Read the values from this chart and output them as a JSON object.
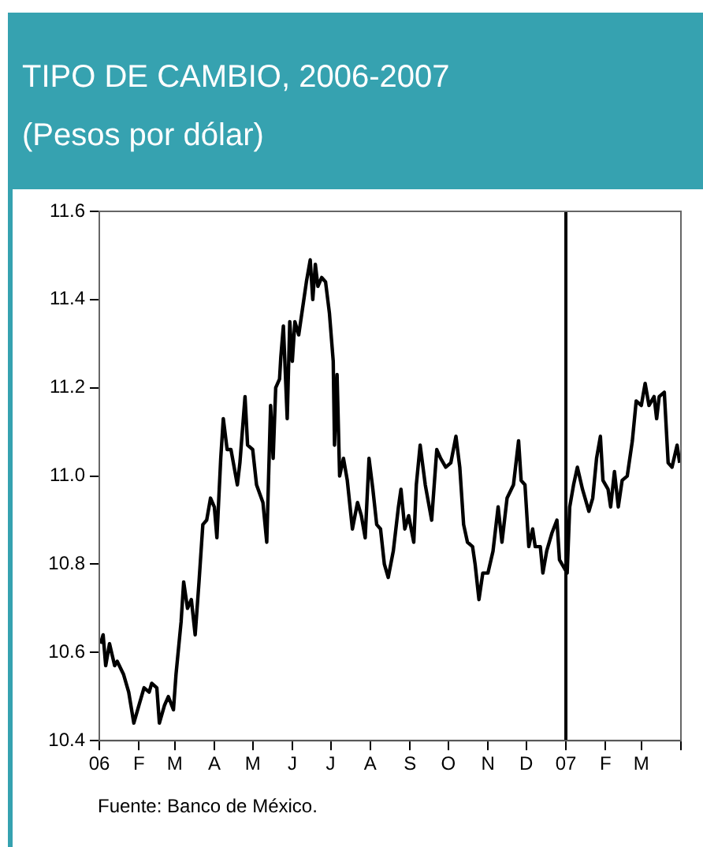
{
  "chart_data": {
    "type": "line",
    "title": "TIPO DE CAMBIO, 2006-2007",
    "subtitle": "(Pesos por dólar)",
    "annotations": [
      "Fuente: Banco de México."
    ],
    "x": [
      "2006-01-02",
      "2006-01-04",
      "2006-01-06",
      "2006-01-09",
      "2006-01-13",
      "2006-01-15",
      "2006-01-20",
      "2006-01-24",
      "2006-01-28",
      "2006-02-01",
      "2006-02-05",
      "2006-02-09",
      "2006-02-11",
      "2006-02-15",
      "2006-02-17",
      "2006-02-21",
      "2006-02-24",
      "2006-02-28",
      "2006-03-02",
      "2006-03-06",
      "2006-03-08",
      "2006-03-11",
      "2006-03-14",
      "2006-03-17",
      "2006-03-20",
      "2006-03-23",
      "2006-03-26",
      "2006-03-29",
      "2006-04-01",
      "2006-04-03",
      "2006-04-06",
      "2006-04-08",
      "2006-04-11",
      "2006-04-14",
      "2006-04-19",
      "2006-04-21",
      "2006-04-25",
      "2006-04-27",
      "2006-05-01",
      "2006-05-04",
      "2006-05-09",
      "2006-05-12",
      "2006-05-15",
      "2006-05-17",
      "2006-05-19",
      "2006-05-22",
      "2006-05-23",
      "2006-05-25",
      "2006-05-28",
      "2006-05-30",
      "2006-06-01",
      "2006-06-03",
      "2006-06-06",
      "2006-06-10",
      "2006-06-12",
      "2006-06-15",
      "2006-06-17",
      "2006-06-19",
      "2006-06-21",
      "2006-06-24",
      "2006-06-27",
      "2006-06-30",
      "2006-07-03",
      "2006-07-04",
      "2006-07-06",
      "2006-07-08",
      "2006-07-11",
      "2006-07-14",
      "2006-07-18",
      "2006-07-22",
      "2006-07-25",
      "2006-07-28",
      "2006-07-31",
      "2006-08-03",
      "2006-08-06",
      "2006-08-09",
      "2006-08-12",
      "2006-08-15",
      "2006-08-19",
      "2006-08-23",
      "2006-08-25",
      "2006-08-28",
      "2006-08-31",
      "2006-09-04",
      "2006-09-06",
      "2006-09-09",
      "2006-09-13",
      "2006-09-18",
      "2006-09-22",
      "2006-09-25",
      "2006-09-29",
      "2006-10-03",
      "2006-10-07",
      "2006-10-10",
      "2006-10-13",
      "2006-10-16",
      "2006-10-20",
      "2006-10-22",
      "2006-10-25",
      "2006-10-28",
      "2006-11-01",
      "2006-11-05",
      "2006-11-09",
      "2006-11-12",
      "2006-11-16",
      "2006-11-21",
      "2006-11-25",
      "2006-11-27",
      "2006-11-30",
      "2006-12-03",
      "2006-12-06",
      "2006-12-08",
      "2006-12-12",
      "2006-12-14",
      "2006-12-17",
      "2006-12-21",
      "2006-12-25",
      "2006-12-27",
      "2007-01-02",
      "2007-01-04",
      "2007-01-07",
      "2007-01-10",
      "2007-01-14",
      "2007-01-19",
      "2007-01-22",
      "2007-01-25",
      "2007-01-28",
      "2007-01-30",
      "2007-02-03",
      "2007-02-05",
      "2007-02-08",
      "2007-02-11",
      "2007-02-14",
      "2007-02-18",
      "2007-02-22",
      "2007-02-25",
      "2007-03-01",
      "2007-03-04",
      "2007-03-07",
      "2007-03-11",
      "2007-03-13",
      "2007-03-15",
      "2007-03-19",
      "2007-03-22",
      "2007-03-25",
      "2007-03-29",
      "2007-03-31"
    ],
    "series": [
      {
        "color": "#000000",
        "values": [
          10.62,
          10.64,
          10.57,
          10.62,
          10.57,
          10.58,
          10.55,
          10.51,
          10.44,
          10.48,
          10.52,
          10.51,
          10.53,
          10.52,
          10.44,
          10.48,
          10.5,
          10.47,
          10.55,
          10.67,
          10.76,
          10.7,
          10.72,
          10.64,
          10.76,
          10.89,
          10.9,
          10.95,
          10.93,
          10.86,
          11.04,
          11.13,
          11.06,
          11.06,
          10.98,
          11.03,
          11.18,
          11.07,
          11.06,
          10.98,
          10.94,
          10.85,
          11.16,
          11.04,
          11.2,
          11.22,
          11.27,
          11.34,
          11.13,
          11.35,
          11.26,
          11.35,
          11.32,
          11.4,
          11.44,
          11.49,
          11.4,
          11.48,
          11.43,
          11.45,
          11.44,
          11.37,
          11.26,
          11.07,
          11.23,
          11.0,
          11.04,
          10.99,
          10.88,
          10.94,
          10.91,
          10.86,
          11.04,
          10.97,
          10.89,
          10.88,
          10.8,
          10.77,
          10.83,
          10.93,
          10.97,
          10.88,
          10.91,
          10.85,
          10.98,
          11.07,
          10.98,
          10.9,
          11.06,
          11.04,
          11.02,
          11.03,
          11.09,
          11.02,
          10.89,
          10.85,
          10.84,
          10.8,
          10.72,
          10.78,
          10.78,
          10.83,
          10.93,
          10.85,
          10.95,
          10.98,
          11.08,
          10.99,
          10.98,
          10.84,
          10.88,
          10.84,
          10.84,
          10.78,
          10.83,
          10.87,
          10.9,
          10.81,
          10.78,
          10.93,
          10.98,
          11.02,
          10.97,
          10.92,
          10.95,
          11.04,
          11.09,
          10.99,
          10.97,
          10.93,
          11.01,
          10.93,
          10.99,
          11.0,
          11.08,
          11.17,
          11.16,
          11.21,
          11.16,
          11.18,
          11.13,
          11.18,
          11.19,
          11.03,
          11.02,
          11.07,
          11.03
        ]
      }
    ],
    "xlim": [
      "2006-01-01",
      "2007-04-01"
    ],
    "xticks": [
      {
        "value": "2006-01-01",
        "label": "06"
      },
      {
        "value": "2006-02-01",
        "label": "F"
      },
      {
        "value": "2006-03-01",
        "label": "M"
      },
      {
        "value": "2006-04-01",
        "label": "A"
      },
      {
        "value": "2006-05-01",
        "label": "M"
      },
      {
        "value": "2006-06-01",
        "label": "J"
      },
      {
        "value": "2006-07-01",
        "label": "J"
      },
      {
        "value": "2006-08-01",
        "label": "A"
      },
      {
        "value": "2006-09-01",
        "label": "S"
      },
      {
        "value": "2006-10-01",
        "label": "O"
      },
      {
        "value": "2006-11-01",
        "label": "N"
      },
      {
        "value": "2006-12-01",
        "label": "D"
      },
      {
        "value": "2007-01-01",
        "label": "07"
      },
      {
        "value": "2007-02-01",
        "label": "F"
      },
      {
        "value": "2007-03-01",
        "label": "M"
      },
      {
        "value": "2007-04-01",
        "label": null
      }
    ],
    "ylim": [
      10.4,
      11.6
    ],
    "yticks": [
      10.4,
      10.6,
      10.8,
      {
        "value": 11,
        "label": "11.0"
      },
      11.2,
      11.4,
      11.6
    ],
    "ref_lines": [
      {
        "axis": "x",
        "value": "2007-01-01",
        "color": "#000000"
      }
    ],
    "grid": false,
    "legend": false,
    "marker": "none",
    "line_style": "solid"
  }
}
